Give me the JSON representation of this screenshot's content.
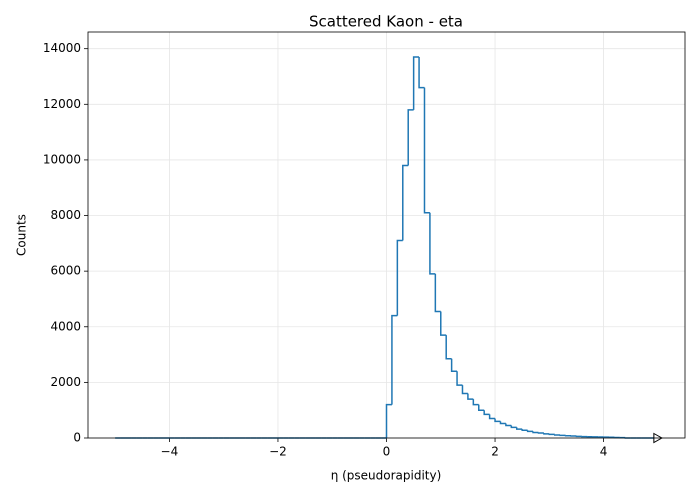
{
  "chart_data": {
    "type": "histogram",
    "title": "Scattered Kaon - eta",
    "x_label": "η (pseudorapidity)",
    "y_label": "Counts",
    "bins": [
      -5.0,
      -4.9,
      -4.8,
      -4.7,
      -4.6,
      -4.5,
      -4.4,
      -4.3,
      -4.2,
      -4.1,
      -4.0,
      -3.9,
      -3.8,
      -3.7,
      -3.6,
      -3.5,
      -3.4,
      -3.3,
      -3.2,
      -3.1,
      -3.0,
      -2.9,
      -2.8,
      -2.7,
      -2.6,
      -2.5,
      -2.4,
      -2.3,
      -2.2,
      -2.1,
      -2.0,
      -1.9,
      -1.8,
      -1.7,
      -1.6,
      -1.5,
      -1.4,
      -1.3,
      -1.2,
      -1.1,
      -1.0,
      -0.9,
      -0.8,
      -0.7,
      -0.6,
      -0.5,
      -0.4,
      -0.3,
      -0.2,
      -0.1,
      0.0,
      0.1,
      0.2,
      0.3,
      0.4,
      0.5,
      0.6,
      0.7,
      0.8,
      0.9,
      1.0,
      1.1,
      1.2,
      1.3,
      1.4,
      1.5,
      1.6,
      1.7,
      1.8,
      1.9,
      2.0,
      2.1,
      2.2,
      2.3,
      2.4,
      2.5,
      2.6,
      2.7,
      2.8,
      2.9,
      3.0,
      3.1,
      3.2,
      3.3,
      3.4,
      3.5,
      3.6,
      3.7,
      3.8,
      3.9,
      4.0,
      4.1,
      4.2,
      4.3,
      4.4,
      4.5,
      4.6,
      4.7,
      4.8,
      4.9,
      5.0
    ],
    "counts": [
      0,
      0,
      0,
      0,
      0,
      0,
      0,
      0,
      0,
      0,
      0,
      0,
      0,
      0,
      0,
      0,
      0,
      0,
      0,
      0,
      0,
      0,
      0,
      0,
      0,
      0,
      0,
      0,
      0,
      0,
      0,
      0,
      0,
      0,
      0,
      0,
      0,
      0,
      0,
      0,
      0,
      0,
      0,
      0,
      0,
      0,
      0,
      0,
      0,
      0,
      1200,
      4400,
      7100,
      9800,
      11800,
      13700,
      12600,
      8100,
      5900,
      4550,
      3700,
      2850,
      2400,
      1900,
      1600,
      1400,
      1200,
      1000,
      850,
      700,
      600,
      520,
      450,
      380,
      320,
      280,
      240,
      200,
      180,
      150,
      130,
      110,
      95,
      80,
      70,
      60,
      50,
      45,
      40,
      35,
      30,
      25,
      20,
      15,
      0,
      0,
      0,
      0,
      0,
      0
    ],
    "color": "#1f77b4",
    "xlim": [
      -5.5,
      5.5
    ],
    "ylim": [
      0,
      14600
    ],
    "xticks": [
      {
        "value": -4,
        "label": "−4"
      },
      {
        "value": -2,
        "label": "−2"
      },
      0,
      2,
      4
    ],
    "yticks": [
      0,
      2000,
      4000,
      6000,
      8000,
      10000,
      12000,
      14000
    ],
    "grid": true
  }
}
